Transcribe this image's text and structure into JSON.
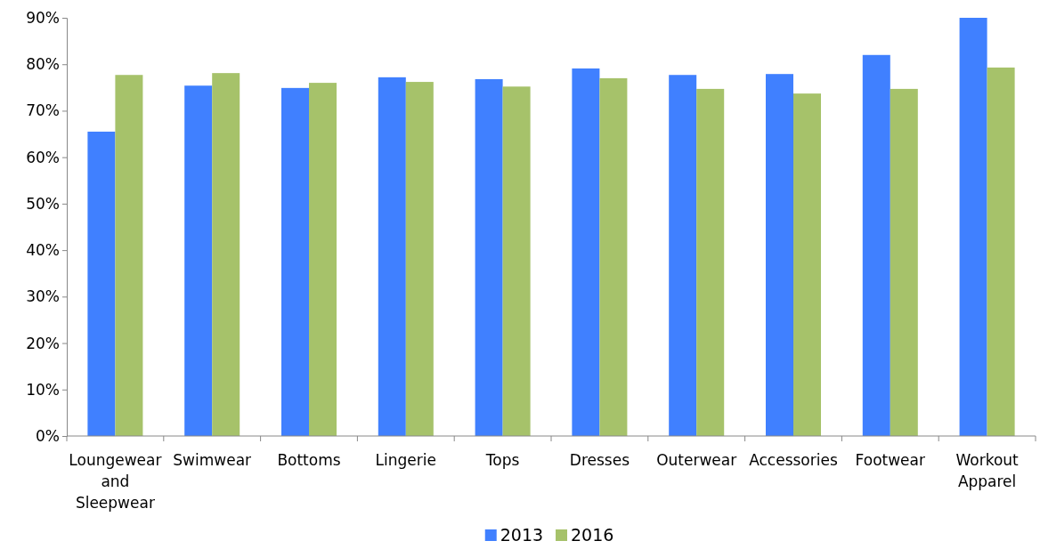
{
  "chart_data": {
    "type": "bar",
    "categories": [
      "Loungewear and Sleepwear",
      "Swimwear",
      "Bottoms",
      "Lingerie",
      "Tops",
      "Dresses",
      "Outerwear",
      "Accessories",
      "Footwear",
      "Workout Apparel"
    ],
    "series": [
      {
        "name": "2013",
        "color": "#4080ff",
        "values": [
          65.5,
          75.4,
          74.9,
          77.2,
          76.8,
          79.1,
          77.7,
          77.9,
          82.0,
          90
        ]
      },
      {
        "name": "2016",
        "color": "#a6c26a",
        "values": [
          77.7,
          78.1,
          76.0,
          76.2,
          75.2,
          77.0,
          74.7,
          73.7,
          74.7,
          79.3
        ]
      }
    ],
    "ylim": [
      0,
      90
    ],
    "yticks": [
      {
        "value": 0,
        "label": "0%"
      },
      {
        "value": 10,
        "label": "10%"
      },
      {
        "value": 20,
        "label": "20%"
      },
      {
        "value": 30,
        "label": "30%"
      },
      {
        "value": 40,
        "label": "40%"
      },
      {
        "value": 50,
        "label": "50%"
      },
      {
        "value": 60,
        "label": "60%"
      },
      {
        "value": 70,
        "label": "70%"
      },
      {
        "value": 80,
        "label": "80%"
      },
      {
        "value": 90,
        "label": "90%"
      }
    ],
    "grid": false,
    "legend": "bottom"
  }
}
